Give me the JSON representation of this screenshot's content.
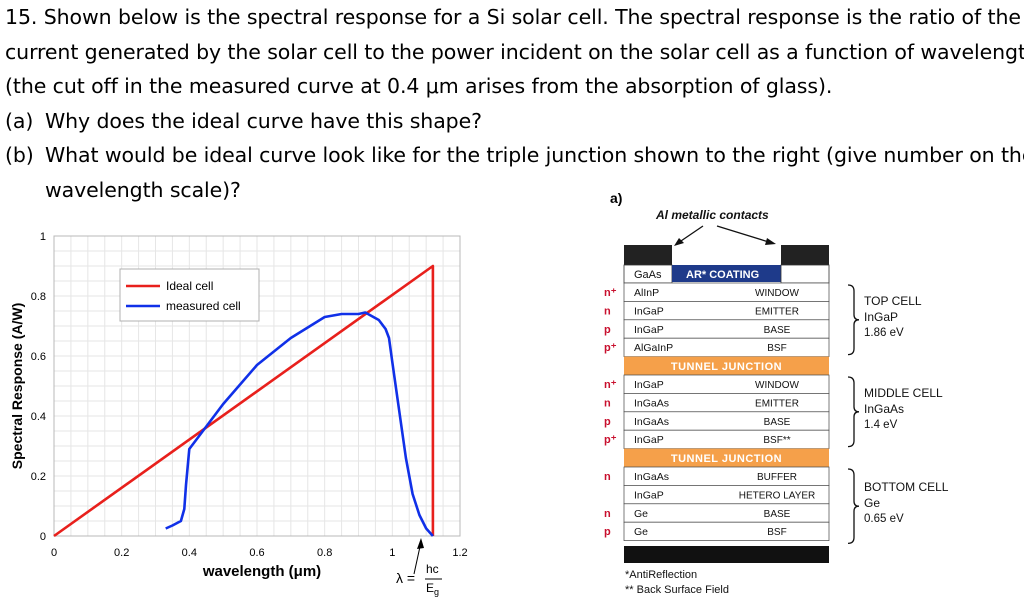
{
  "question": {
    "line1": "15. Shown below is the spectral response for a Si solar cell.  The spectral response is the ratio of the",
    "line2": "current generated by the solar cell to the power incident on the solar cell as a function of wavelength",
    "line3": "(the cut off in the measured curve at 0.4 μm arises from the absorption of glass).",
    "part_a_label": "(a)",
    "part_a_text": "Why does the ideal curve have this shape?",
    "part_b_label": "(b)",
    "part_b_text": "What would be ideal curve look like for the triple junction shown to the right (give number on the",
    "part_b_cont": "wavelength scale)?"
  },
  "chart_data": {
    "type": "line",
    "xlabel": "wavelength (μm)",
    "ylabel": "Spectral Response (A/W)",
    "xlim": [
      0,
      1.2
    ],
    "ylim": [
      0,
      1
    ],
    "x_ticks": [
      "0",
      "0.2",
      "0.4",
      "0.6",
      "0.8",
      "1",
      "1.2"
    ],
    "y_ticks": [
      "0",
      "0.2",
      "0.4",
      "0.6",
      "0.8",
      "1"
    ],
    "grid": true,
    "legend": "top-left",
    "cutoff_annotation": {
      "prefix": "λ =",
      "numerator": "hc",
      "denominator": "E",
      "denominator_sub": "g"
    },
    "series": [
      {
        "name": "Ideal cell",
        "color": "#e8201c",
        "x": [
          0,
          1.12,
          1.12
        ],
        "y": [
          0,
          0.9,
          0
        ]
      },
      {
        "name": "measured cell",
        "color": "#1030e8",
        "x": [
          0.33,
          0.35,
          0.375,
          0.385,
          0.39,
          0.4,
          0.42,
          0.5,
          0.6,
          0.7,
          0.8,
          0.85,
          0.88,
          0.9,
          0.92,
          0.96,
          0.98,
          0.99,
          1.0,
          1.02,
          1.04,
          1.06,
          1.08,
          1.1,
          1.12
        ],
        "y": [
          0.025,
          0.035,
          0.05,
          0.09,
          0.17,
          0.29,
          0.32,
          0.44,
          0.57,
          0.66,
          0.73,
          0.74,
          0.74,
          0.74,
          0.745,
          0.72,
          0.69,
          0.66,
          0.58,
          0.42,
          0.26,
          0.14,
          0.07,
          0.025,
          0.0
        ]
      }
    ]
  },
  "diagram": {
    "panel_label": "a)",
    "contacts_label": "Al metallic contacts",
    "top_label": "GaAs",
    "ar_label": "AR* COATING",
    "tunnel_label": "TUNNEL JUNCTION",
    "layers": [
      {
        "dop": "n⁺",
        "mat": "AlInP",
        "role": "WINDOW"
      },
      {
        "dop": "n",
        "mat": "InGaP",
        "role": "EMITTER"
      },
      {
        "dop": "p",
        "mat": "InGaP",
        "role": "BASE"
      },
      {
        "dop": "p⁺",
        "mat": "AlGaInP",
        "role": "BSF"
      },
      {
        "dop": "n⁺",
        "mat": "InGaP",
        "role": "WINDOW"
      },
      {
        "dop": "n",
        "mat": "InGaAs",
        "role": "EMITTER"
      },
      {
        "dop": "p",
        "mat": "InGaAs",
        "role": "BASE"
      },
      {
        "dop": "p⁺",
        "mat": "InGaP",
        "role": "BSF**"
      },
      {
        "dop": "n",
        "mat": "InGaAs",
        "role": "BUFFER"
      },
      {
        "dop": "",
        "mat": "InGaP",
        "role": "HETERO LAYER"
      },
      {
        "dop": "n",
        "mat": "Ge",
        "role": "BASE"
      },
      {
        "dop": "p",
        "mat": "Ge",
        "role": "BSF"
      }
    ],
    "cells": [
      {
        "name": "TOP CELL",
        "material": "InGaP",
        "gap": "1.86 eV"
      },
      {
        "name": "MIDDLE CELL",
        "material": "InGaAs",
        "gap": "1.4 eV"
      },
      {
        "name": "BOTTOM CELL",
        "material": "Ge",
        "gap": "0.65 eV"
      }
    ],
    "footnote1": "*AntiReflection",
    "footnote2": "** Back Surface Field"
  }
}
